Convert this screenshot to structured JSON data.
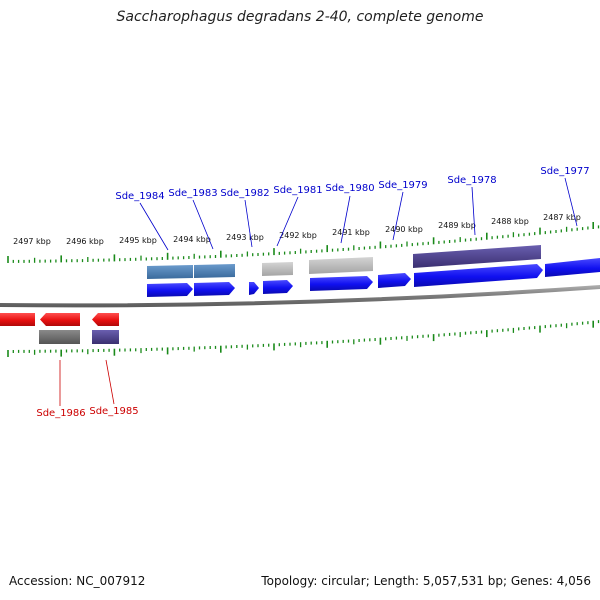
{
  "title": "Saccharophagus degradans 2-40, complete genome",
  "colors": {
    "forward_gene": "#1010f0",
    "reverse_gene": "#e81010",
    "forward_label": "#0000cc",
    "reverse_label": "#cc0000",
    "tick": "#1a8a1a",
    "backbone": "#8a8a8a",
    "feature_blue": "#4a7fb8",
    "feature_gray": "#b8b8b8",
    "feature_dark_gray": "#6a6a6a",
    "feature_purple": "#4a3f8a"
  },
  "ruler_labels": [
    "2497 kbp",
    "2496 kbp",
    "2495 kbp",
    "2494 kbp",
    "2493 kbp",
    "2492 kbp",
    "2491 kbp",
    "2490 kbp",
    "2489 kbp",
    "2488 kbp",
    "2487 kbp"
  ],
  "forward_gene_labels": [
    "Sde_1984",
    "Sde_1983",
    "Sde_1982",
    "Sde_1981",
    "Sde_1980",
    "Sde_1979",
    "Sde_1978",
    "Sde_1977"
  ],
  "reverse_gene_labels": [
    "Sde_1986",
    "Sde_1985"
  ],
  "footer": {
    "accession_label": "Accession:",
    "accession": "NC_007912",
    "topology_label": "Topology:",
    "topology": "circular",
    "length_label": "Length:",
    "length": "5,057,531 bp",
    "genes_label": "Genes:",
    "genes": "4,056"
  }
}
